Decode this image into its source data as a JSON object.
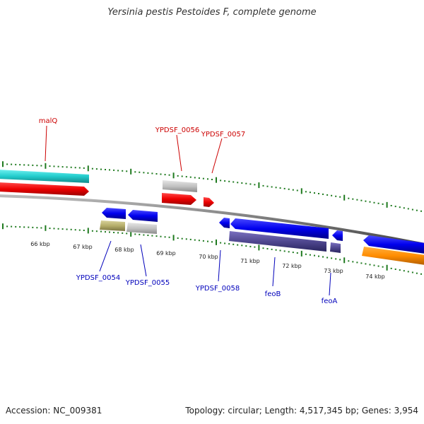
{
  "title": "Yersinia pestis Pestoides F, complete genome",
  "accession": "Accession: NC_009381",
  "summary": "Topology: circular; Length: 4,517,345 bp; Genes: 3,954",
  "colors": {
    "forward_label": "#cc0000",
    "reverse_label": "#0000bb",
    "tick_green": "#1f7a1f",
    "backbone": "#888888"
  },
  "scale_ticks": [
    "66 kbp",
    "67 kbp",
    "68 kbp",
    "69 kbp",
    "70 kbp",
    "71 kbp",
    "72 kbp",
    "73 kbp",
    "74 kbp"
  ],
  "gene_labels": {
    "forward": [
      "malQ",
      "YPDSF_0056",
      "YPDSF_0057"
    ],
    "reverse": [
      "YPDSF_0054",
      "YPDSF_0055",
      "YPDSF_0058",
      "feoB",
      "feoA"
    ]
  }
}
